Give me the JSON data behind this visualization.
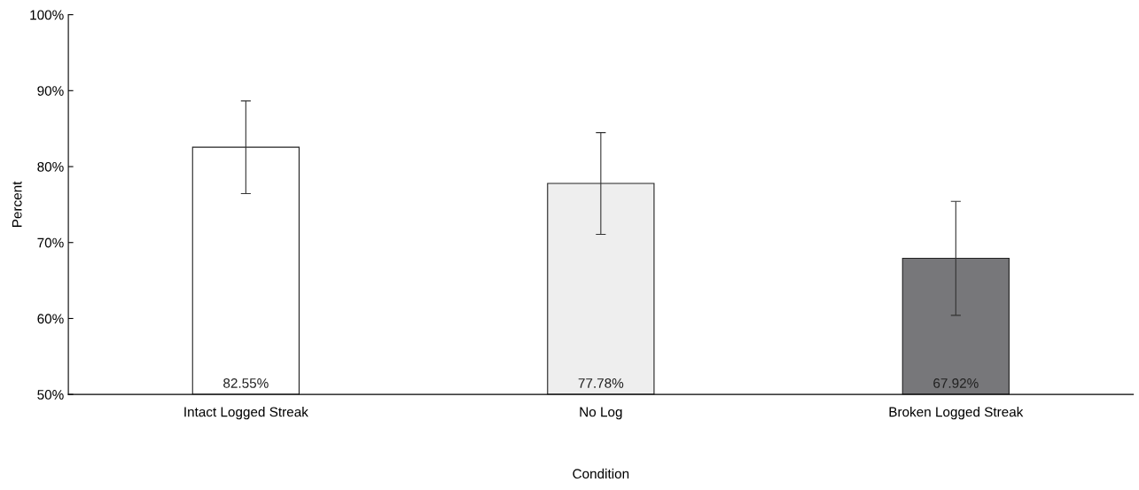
{
  "chart_data": {
    "type": "bar",
    "xlabel": "Condition",
    "ylabel": "Percent",
    "categories": [
      "Intact Logged Streak",
      "No Log",
      "Broken Logged Streak"
    ],
    "values": [
      82.55,
      77.78,
      67.92
    ],
    "errors": [
      6.1,
      6.7,
      7.5
    ],
    "colors": [
      "#ffffff",
      "#eeeeee",
      "#77777a"
    ],
    "value_labels": [
      "82.55%",
      "77.78%",
      "67.92%"
    ],
    "ylim": [
      50,
      100
    ],
    "yticks": [
      {
        "value": 50,
        "label": "50%"
      },
      {
        "value": 60,
        "label": "60%"
      },
      {
        "value": 70,
        "label": "70%"
      },
      {
        "value": 80,
        "label": "80%"
      },
      {
        "value": 90,
        "label": "90%"
      },
      {
        "value": 100,
        "label": "100%"
      }
    ],
    "grid": false
  }
}
